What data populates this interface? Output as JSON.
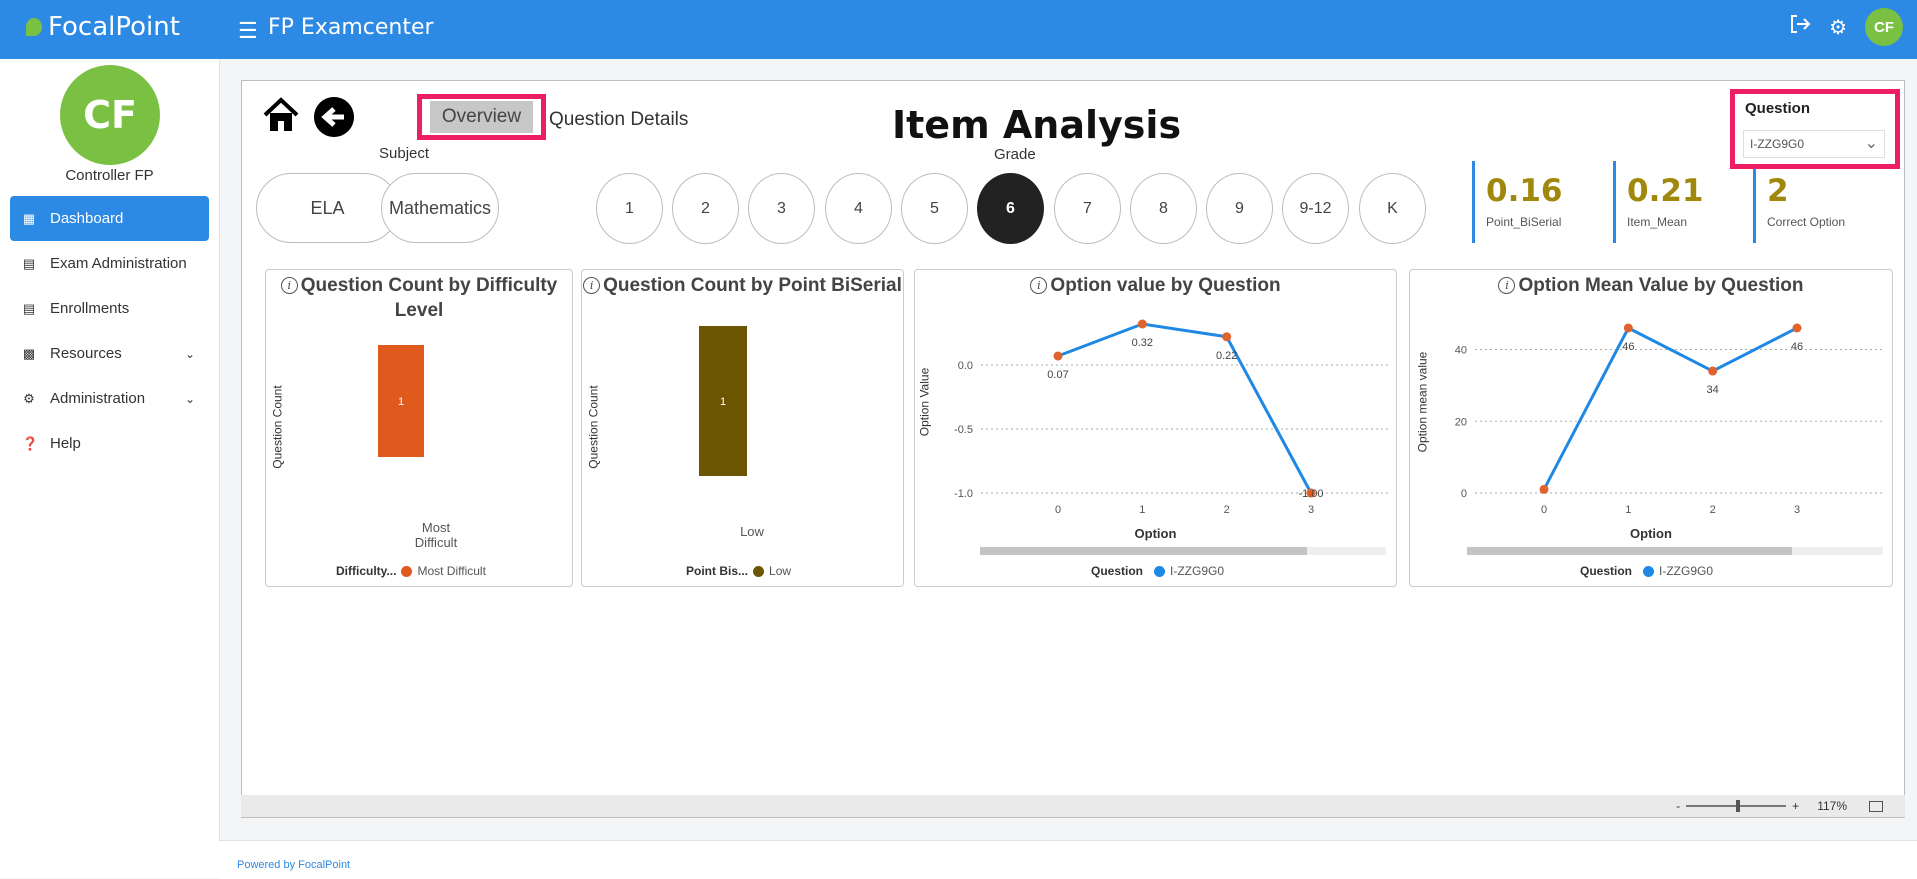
{
  "app": {
    "logo": "FocalPoint",
    "title": "FP Examcenter",
    "user_initials": "CF"
  },
  "topbar_icons": [
    "logout-icon",
    "gear-icon"
  ],
  "sidebar": {
    "initials": "CF",
    "user_name": "Controller FP",
    "items": [
      {
        "label": "Dashboard",
        "icon": "dashboard-icon",
        "active": true
      },
      {
        "label": "Exam Administration",
        "icon": "exam-icon"
      },
      {
        "label": "Enrollments",
        "icon": "enrollments-icon"
      },
      {
        "label": "Resources",
        "icon": "resources-icon",
        "expandable": true
      },
      {
        "label": "Administration",
        "icon": "admin-icon",
        "expandable": true
      },
      {
        "label": "Help",
        "icon": "help-icon"
      }
    ]
  },
  "report": {
    "title": "Item Analysis",
    "tabs": {
      "overview": "Overview",
      "question_details": "Question Details"
    },
    "subject_label": "Subject",
    "subjects": [
      "ELA",
      "Mathematics"
    ],
    "grade_label": "Grade",
    "grades": [
      "1",
      "2",
      "3",
      "4",
      "5",
      "6",
      "7",
      "8",
      "9",
      "9-12",
      "K"
    ],
    "selected_grade": "6",
    "kpis": [
      {
        "value": "0.16",
        "label": "Point_BiSerial"
      },
      {
        "value": "0.21",
        "label": "Item_Mean"
      },
      {
        "value": "2",
        "label": "Correct Option"
      }
    ],
    "question_filter": {
      "title": "Question",
      "value": "I-ZZG9G0"
    },
    "zoom": {
      "minus": "-",
      "plus": "+",
      "level": "117%"
    }
  },
  "chart_data": [
    {
      "type": "bar",
      "title": "Question Count by Difficulty Level",
      "ylabel": "Question Count",
      "categories": [
        "Most\nDifficult"
      ],
      "values": [
        1
      ],
      "ylim": [
        0,
        1
      ],
      "legend": {
        "title": "Difficulty...",
        "items": [
          {
            "name": "Most Difficult",
            "color": "#e05a1e"
          }
        ]
      },
      "color": "#e05a1e"
    },
    {
      "type": "bar",
      "title": "Question Count by Point BiSerial",
      "ylabel": "Question Count",
      "categories": [
        "Low"
      ],
      "values": [
        1
      ],
      "ylim": [
        0,
        1
      ],
      "legend": {
        "title": "Point Bis...",
        "items": [
          {
            "name": "Low",
            "color": "#6b5500"
          }
        ]
      },
      "color": "#6b5500"
    },
    {
      "type": "line",
      "title": "Option value by Question",
      "xlabel": "Option",
      "ylabel": "Option Value",
      "x": [
        0,
        1,
        2,
        3
      ],
      "series": [
        {
          "name": "I-ZZG9G0",
          "values": [
            0.07,
            0.32,
            0.22,
            -1.0
          ]
        }
      ],
      "data_labels": [
        "0.07",
        "0.32",
        "0.22",
        "-1.00"
      ],
      "yticks": [
        "0.0",
        "-0.5",
        "-1.0"
      ],
      "ylim": [
        -1.0,
        0.32
      ],
      "legend": {
        "title": "Question"
      }
    },
    {
      "type": "line",
      "title": "Option Mean Value by Question",
      "xlabel": "Option",
      "ylabel": "Option mean value",
      "x": [
        0,
        1,
        2,
        3
      ],
      "series": [
        {
          "name": "I-ZZG9G0",
          "values": [
            1,
            46,
            34,
            46
          ]
        }
      ],
      "data_labels": [
        "",
        "46",
        "34",
        "46"
      ],
      "yticks": [
        "40",
        "20",
        "0"
      ],
      "ylim": [
        0,
        46
      ],
      "legend": {
        "title": "Question"
      }
    }
  ],
  "footer": {
    "powered_by": "Powered by FocalPoint"
  },
  "colors": {
    "brand": "#2d8ae4",
    "accent": "#7ac143",
    "highlight": "#ee1e63",
    "kpi": "#a0880c",
    "line": "#1e88e5",
    "marker": "#e0622c"
  }
}
